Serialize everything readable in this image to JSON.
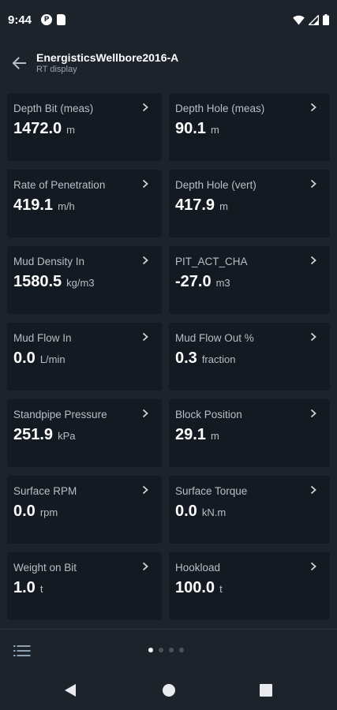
{
  "status_bar": {
    "time": "9:44",
    "left_icons": [
      "circle-p-icon",
      "sd-card-icon"
    ],
    "right_icons": [
      "wifi-icon",
      "signal-icon",
      "battery-icon"
    ]
  },
  "app_bar": {
    "title": "EnergisticsWellbore2016-A",
    "subtitle": "RT display"
  },
  "cards": [
    {
      "label": "Depth Bit (meas)",
      "value": "1472.0",
      "unit": "m"
    },
    {
      "label": "Depth Hole (meas)",
      "value": "90.1",
      "unit": "m"
    },
    {
      "label": "Rate of Penetration",
      "value": "419.1",
      "unit": "m/h"
    },
    {
      "label": "Depth Hole (vert)",
      "value": "417.9",
      "unit": "m"
    },
    {
      "label": "Mud Density In",
      "value": "1580.5",
      "unit": "kg/m3"
    },
    {
      "label": "PIT_ACT_CHA",
      "value": "-27.0",
      "unit": "m3"
    },
    {
      "label": "Mud Flow In",
      "value": "0.0",
      "unit": "L/min"
    },
    {
      "label": "Mud Flow Out %",
      "value": "0.3",
      "unit": "fraction"
    },
    {
      "label": "Standpipe Pressure",
      "value": "251.9",
      "unit": "kPa"
    },
    {
      "label": "Block Position",
      "value": "29.1",
      "unit": "m"
    },
    {
      "label": "Surface RPM",
      "value": "0.0",
      "unit": "rpm"
    },
    {
      "label": "Surface Torque",
      "value": "0.0",
      "unit": "kN.m"
    },
    {
      "label": "Weight on Bit",
      "value": "1.0",
      "unit": "t"
    },
    {
      "label": "Hookload",
      "value": "100.0",
      "unit": "t"
    }
  ],
  "pager": {
    "pages": 4,
    "current": 1
  },
  "colors": {
    "background": "#1c232b",
    "card": "#131a21",
    "accent": "#ffffff",
    "muted": "#b8bfc7"
  }
}
